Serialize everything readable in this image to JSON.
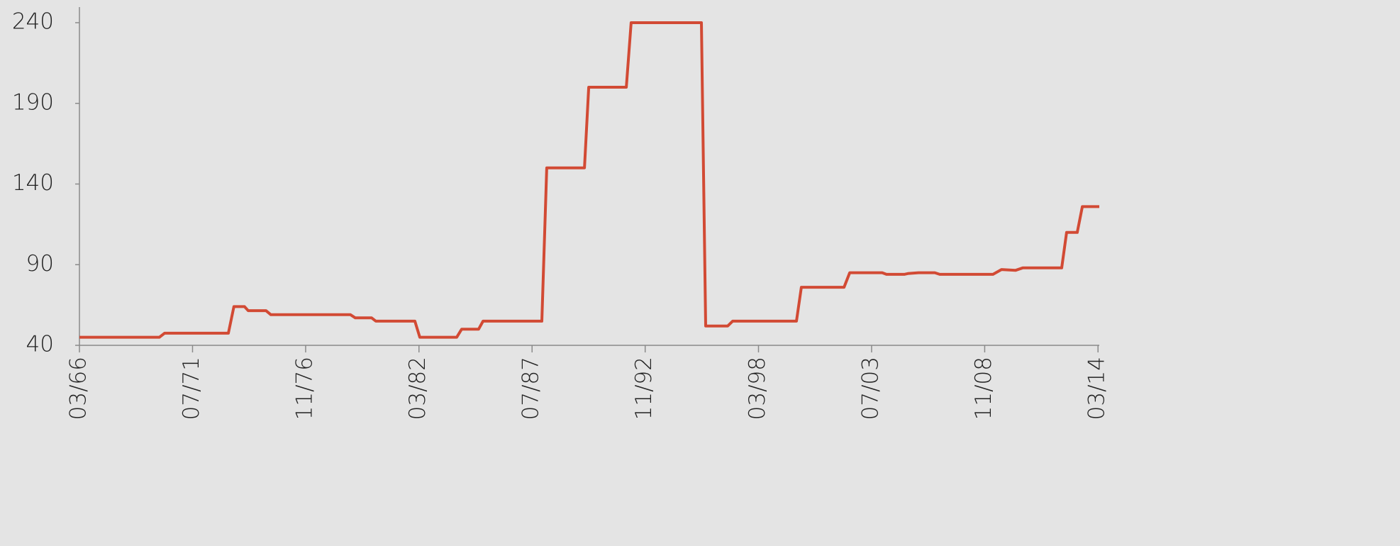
{
  "chart_data": {
    "type": "line",
    "x": [
      1966.17,
      1969.94,
      1970.18,
      1973.19,
      1973.45,
      1973.95,
      1974.12,
      1974.96,
      1975.19,
      1978.94,
      1979.17,
      1979.94,
      1980.14,
      1981.98,
      1982.21,
      1983.95,
      1984.18,
      1984.98,
      1985.19,
      1987.96,
      1988.19,
      1989.97,
      1990.17,
      1991.94,
      1992.17,
      1995.48,
      1995.68,
      1996.72,
      1996.95,
      1999.96,
      2000.19,
      2002.2,
      2002.47,
      2004.0,
      2004.2,
      2005.04,
      2005.21,
      2005.71,
      2006.48,
      2006.71,
      2009.22,
      2009.62,
      2010.29,
      2010.62,
      2012.46,
      2012.69,
      2013.19,
      2013.43,
      2014.23
    ],
    "values": [
      45,
      45,
      47.5,
      47.5,
      64,
      64,
      61.5,
      61.5,
      59,
      59,
      57,
      57,
      55,
      55,
      45,
      45,
      50,
      50,
      55,
      55,
      150,
      150,
      200,
      200,
      240,
      240,
      52,
      52,
      55,
      55,
      76,
      76,
      85,
      85,
      84,
      84,
      84.5,
      85,
      85,
      84,
      84,
      87,
      86.5,
      88,
      88,
      110,
      110,
      126,
      126
    ],
    "color": "#d24a34",
    "xlim": [
      1966.17,
      2014.23
    ],
    "xticks": [
      {
        "value": 1966.17,
        "label": "03/66"
      },
      {
        "value": 1971.5,
        "label": "07/71"
      },
      {
        "value": 1976.83,
        "label": "11/76"
      },
      {
        "value": 1982.17,
        "label": "03/82"
      },
      {
        "value": 1987.5,
        "label": "07/87"
      },
      {
        "value": 1992.83,
        "label": "11/92"
      },
      {
        "value": 1998.17,
        "label": "03/98"
      },
      {
        "value": 2003.5,
        "label": "07/03"
      },
      {
        "value": 2008.83,
        "label": "11/08"
      },
      {
        "value": 2014.17,
        "label": "03/14"
      }
    ],
    "ylim": [
      40,
      240
    ],
    "yticks": [
      40,
      90,
      140,
      190,
      240
    ]
  }
}
